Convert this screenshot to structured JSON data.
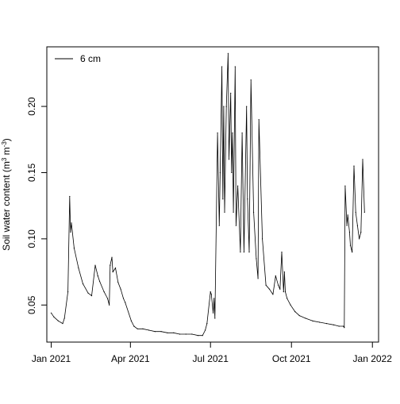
{
  "chart_data": {
    "type": "line",
    "title": "",
    "xlabel": "",
    "ylabel_parts": {
      "prefix": "Soil water content (m",
      "sup1": "3",
      "middle": " m",
      "sup2": "-3",
      "suffix": ")"
    },
    "xlim": [
      "2020-12-27",
      "2022-01-08"
    ],
    "ylim": [
      0.022,
      0.245
    ],
    "x_ticks": [
      {
        "date": "2021-01-01",
        "label": "Jan 2021"
      },
      {
        "date": "2021-04-01",
        "label": "Apr 2021"
      },
      {
        "date": "2021-07-01",
        "label": "Jul 2021"
      },
      {
        "date": "2021-10-01",
        "label": "Oct 2021"
      },
      {
        "date": "2022-01-01",
        "label": "Jan 2022"
      }
    ],
    "y_ticks": [
      {
        "value": 0.05,
        "label": "0.05"
      },
      {
        "value": 0.1,
        "label": "0.10"
      },
      {
        "value": 0.15,
        "label": "0.15"
      },
      {
        "value": 0.2,
        "label": "0.20"
      }
    ],
    "grid": false,
    "legend": {
      "position": "top-left",
      "entries": [
        "6 cm"
      ]
    },
    "series": [
      {
        "name": "6 cm",
        "color": "#000000",
        "x": [
          "2021-01-01",
          "2021-01-04",
          "2021-01-09",
          "2021-01-14",
          "2021-01-16",
          "2021-01-20",
          "2021-01-22",
          "2021-01-23",
          "2021-01-24",
          "2021-01-27",
          "2021-02-01",
          "2021-02-06",
          "2021-02-12",
          "2021-02-16",
          "2021-02-20",
          "2021-02-23",
          "2021-02-25",
          "2021-03-02",
          "2021-03-06",
          "2021-03-08",
          "2021-03-09",
          "2021-03-11",
          "2021-03-12",
          "2021-03-15",
          "2021-03-18",
          "2021-03-21",
          "2021-03-24",
          "2021-03-26",
          "2021-04-02",
          "2021-04-05",
          "2021-04-09",
          "2021-04-15",
          "2021-04-22",
          "2021-04-29",
          "2021-05-06",
          "2021-05-13",
          "2021-05-20",
          "2021-05-27",
          "2021-06-03",
          "2021-06-10",
          "2021-06-17",
          "2021-06-22",
          "2021-06-25",
          "2021-06-27",
          "2021-07-01",
          "2021-07-02",
          "2021-07-04",
          "2021-07-05",
          "2021-07-06",
          "2021-07-09",
          "2021-07-11",
          "2021-07-12",
          "2021-07-14",
          "2021-07-15",
          "2021-07-16",
          "2021-07-17",
          "2021-07-19",
          "2021-07-21",
          "2021-07-22",
          "2021-07-24",
          "2021-07-25",
          "2021-07-26",
          "2021-07-27",
          "2021-07-29",
          "2021-07-30",
          "2021-08-01",
          "2021-08-04",
          "2021-08-06",
          "2021-08-08",
          "2021-08-11",
          "2021-08-12",
          "2021-08-14",
          "2021-08-16",
          "2021-08-19",
          "2021-08-22",
          "2021-08-24",
          "2021-08-25",
          "2021-08-29",
          "2021-09-02",
          "2021-09-06",
          "2021-09-10",
          "2021-09-13",
          "2021-09-16",
          "2021-09-18",
          "2021-09-20",
          "2021-09-22",
          "2021-09-23",
          "2021-09-24",
          "2021-09-26",
          "2021-09-30",
          "2021-10-05",
          "2021-10-10",
          "2021-10-17",
          "2021-10-25",
          "2021-11-02",
          "2021-11-10",
          "2021-11-18",
          "2021-11-24",
          "2021-11-29",
          "2021-11-30",
          "2021-12-01",
          "2021-12-03",
          "2021-12-04",
          "2021-12-06",
          "2021-12-07",
          "2021-12-09",
          "2021-12-11",
          "2021-12-13",
          "2021-12-15",
          "2021-12-17",
          "2021-12-19",
          "2021-12-21",
          "2021-12-23"
        ],
        "y": [
          0.044,
          0.041,
          0.038,
          0.036,
          0.04,
          0.06,
          0.132,
          0.105,
          0.112,
          0.093,
          0.078,
          0.066,
          0.059,
          0.057,
          0.08,
          0.072,
          0.068,
          0.06,
          0.055,
          0.05,
          0.08,
          0.086,
          0.075,
          0.078,
          0.067,
          0.062,
          0.055,
          0.052,
          0.038,
          0.034,
          0.032,
          0.032,
          0.031,
          0.03,
          0.03,
          0.029,
          0.029,
          0.028,
          0.028,
          0.028,
          0.027,
          0.027,
          0.031,
          0.036,
          0.06,
          0.058,
          0.044,
          0.055,
          0.04,
          0.18,
          0.11,
          0.15,
          0.23,
          0.13,
          0.2,
          0.12,
          0.2,
          0.24,
          0.16,
          0.21,
          0.15,
          0.18,
          0.12,
          0.23,
          0.11,
          0.14,
          0.09,
          0.18,
          0.09,
          0.2,
          0.13,
          0.09,
          0.22,
          0.12,
          0.085,
          0.07,
          0.19,
          0.1,
          0.065,
          0.062,
          0.058,
          0.072,
          0.065,
          0.062,
          0.09,
          0.06,
          0.075,
          0.06,
          0.055,
          0.05,
          0.045,
          0.042,
          0.04,
          0.038,
          0.037,
          0.036,
          0.035,
          0.034,
          0.034,
          0.033,
          0.14,
          0.11,
          0.118,
          0.105,
          0.095,
          0.09,
          0.155,
          0.12,
          0.11,
          0.1,
          0.105,
          0.16,
          0.12
        ]
      }
    ]
  }
}
